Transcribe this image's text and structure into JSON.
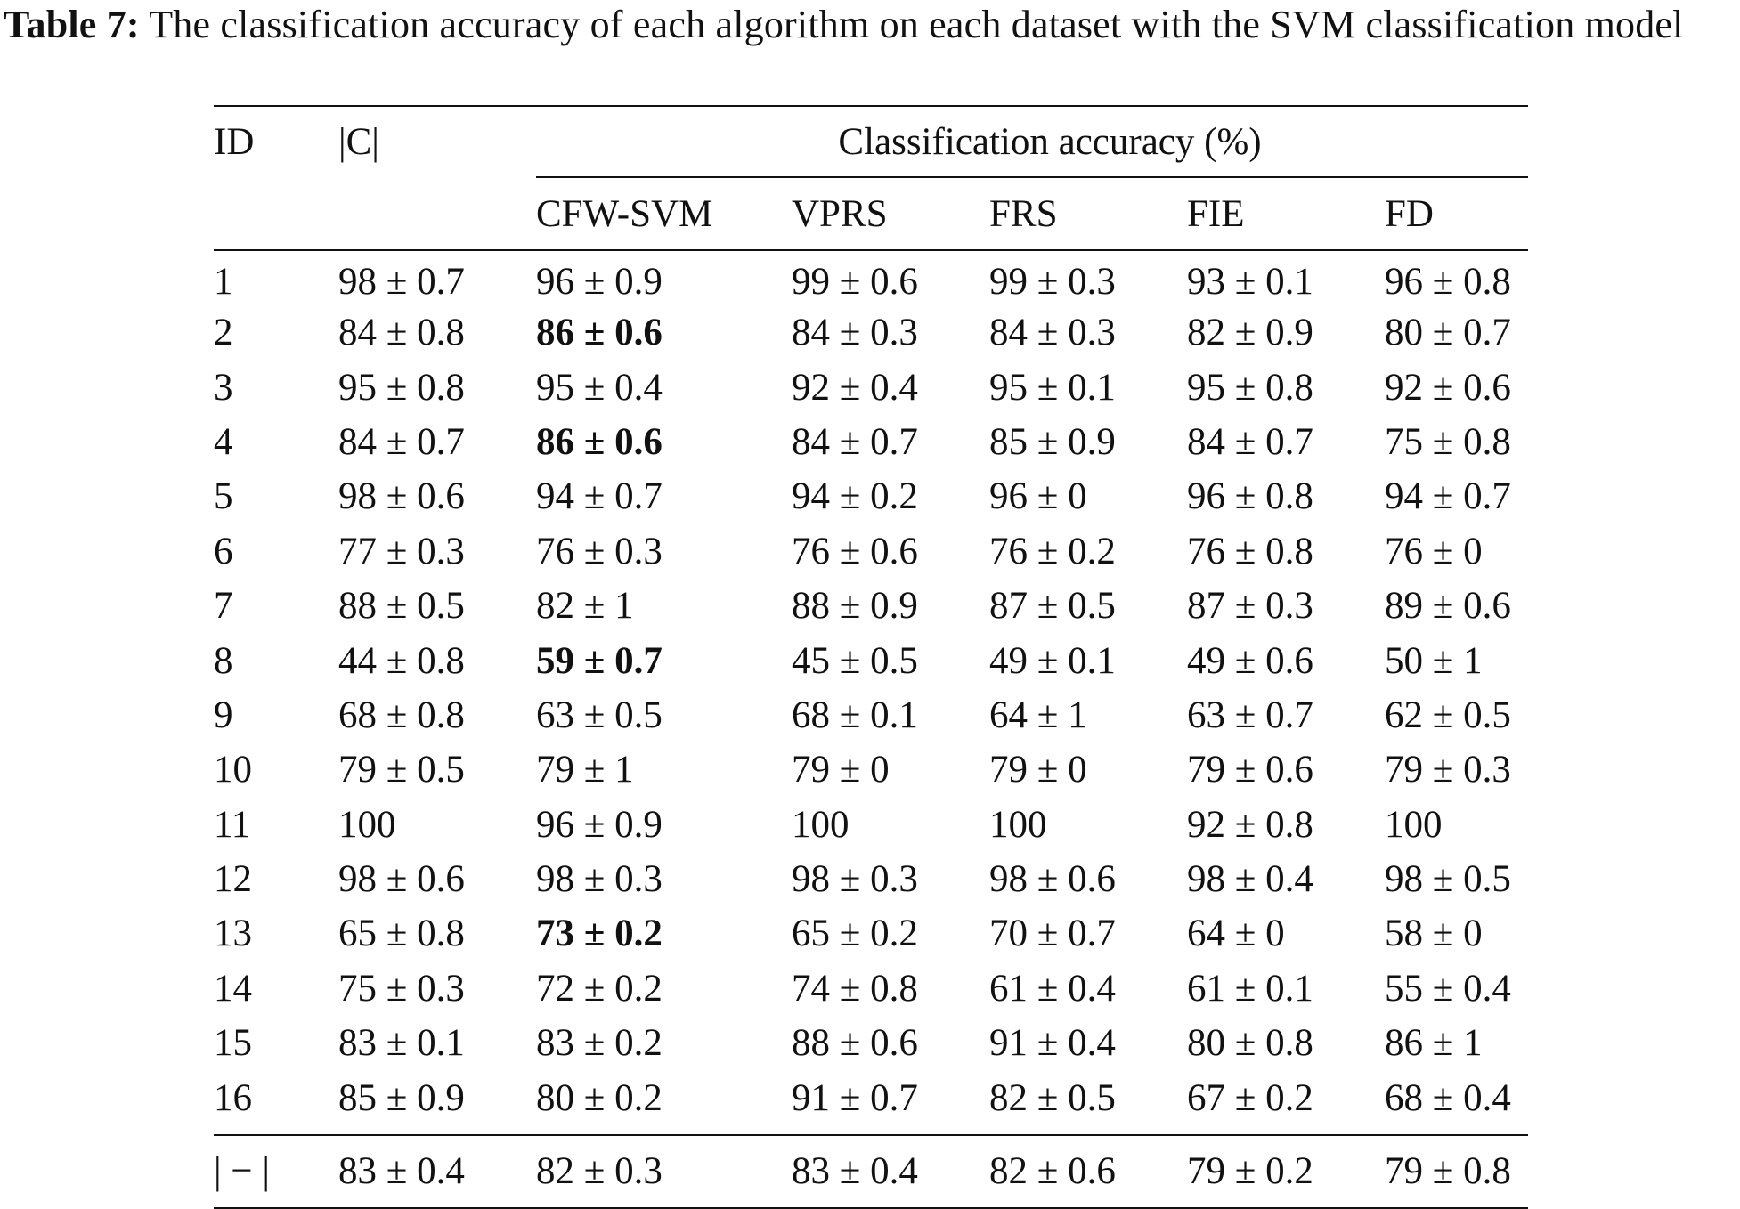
{
  "caption": {
    "label": "Table 7:",
    "text": " The classification accuracy of each algorithm on each dataset with the SVM classification model"
  },
  "table": {
    "header": {
      "id": "ID",
      "c": "|C|",
      "group": "Classification accuracy (%)",
      "methods": [
        "CFW-SVM",
        "VPRS",
        "FRS",
        "FIE",
        "FD"
      ]
    },
    "rows": [
      {
        "id": "1",
        "c": "98 ± 0.7",
        "cfw": "96 ± 0.9",
        "vprs": "99 ± 0.6",
        "frs": "99 ± 0.3",
        "fie": "93 ± 0.1",
        "fd": "96 ± 0.8"
      },
      {
        "id": "2",
        "c": "84 ± 0.8",
        "cfw": "86 ± 0.6",
        "vprs": "84 ± 0.3",
        "frs": "84 ± 0.3",
        "fie": "82 ± 0.9",
        "fd": "80 ± 0.7"
      },
      {
        "id": "3",
        "c": "95 ± 0.8",
        "cfw": "95 ± 0.4",
        "vprs": "92 ± 0.4",
        "frs": "95 ± 0.1",
        "fie": "95 ± 0.8",
        "fd": "92 ± 0.6"
      },
      {
        "id": "4",
        "c": "84 ± 0.7",
        "cfw": "86 ± 0.6",
        "vprs": "84 ± 0.7",
        "frs": "85 ± 0.9",
        "fie": "84 ± 0.7",
        "fd": "75 ± 0.8"
      },
      {
        "id": "5",
        "c": "98 ± 0.6",
        "cfw": "94 ± 0.7",
        "vprs": "94 ± 0.2",
        "frs": "96 ± 0",
        "fie": "96 ± 0.8",
        "fd": "94 ± 0.7"
      },
      {
        "id": "6",
        "c": "77 ± 0.3",
        "cfw": "76 ± 0.3",
        "vprs": "76 ± 0.6",
        "frs": "76 ± 0.2",
        "fie": "76 ± 0.8",
        "fd": "76 ± 0"
      },
      {
        "id": "7",
        "c": "88 ± 0.5",
        "cfw": "82 ± 1",
        "vprs": "88 ± 0.9",
        "frs": "87 ± 0.5",
        "fie": "87 ± 0.3",
        "fd": "89 ± 0.6"
      },
      {
        "id": "8",
        "c": "44 ± 0.8",
        "cfw": "59 ± 0.7",
        "vprs": "45 ± 0.5",
        "frs": "49 ± 0.1",
        "fie": "49 ± 0.6",
        "fd": "50 ± 1"
      },
      {
        "id": "9",
        "c": "68 ± 0.8",
        "cfw": "63 ± 0.5",
        "vprs": "68 ± 0.1",
        "frs": "64 ± 1",
        "fie": "63 ± 0.7",
        "fd": "62 ± 0.5"
      },
      {
        "id": "10",
        "c": "79 ± 0.5",
        "cfw": "79 ± 1",
        "vprs": "79 ± 0",
        "frs": "79 ± 0",
        "fie": "79 ± 0.6",
        "fd": "79 ± 0.3"
      },
      {
        "id": "11",
        "c": "100",
        "cfw": "96 ± 0.9",
        "vprs": "100",
        "frs": "100",
        "fie": "92 ± 0.8",
        "fd": "100"
      },
      {
        "id": "12",
        "c": "98 ± 0.6",
        "cfw": "98 ± 0.3",
        "vprs": "98 ± 0.3",
        "frs": "98 ± 0.6",
        "fie": "98 ± 0.4",
        "fd": "98 ± 0.5"
      },
      {
        "id": "13",
        "c": "65 ± 0.8",
        "cfw": "73 ± 0.2",
        "vprs": "65 ± 0.2",
        "frs": "70 ± 0.7",
        "fie": "64 ± 0",
        "fd": "58 ± 0"
      },
      {
        "id": "14",
        "c": "75 ± 0.3",
        "cfw": "72 ± 0.2",
        "vprs": "74 ± 0.8",
        "frs": "61 ± 0.4",
        "fie": "61 ± 0.1",
        "fd": "55 ± 0.4"
      },
      {
        "id": "15",
        "c": "83 ± 0.1",
        "cfw": "83 ± 0.2",
        "vprs": "88 ± 0.6",
        "frs": "91 ± 0.4",
        "fie": "80 ± 0.8",
        "fd": "86 ± 1"
      },
      {
        "id": "16",
        "c": "85 ± 0.9",
        "cfw": "80 ± 0.2",
        "vprs": "91 ± 0.7",
        "frs": "82 ± 0.5",
        "fie": "67 ± 0.2",
        "fd": "68 ± 0.4"
      }
    ],
    "bold_cells": [
      {
        "row": 1,
        "col": "cfw"
      },
      {
        "row": 3,
        "col": "cfw"
      },
      {
        "row": 7,
        "col": "cfw"
      },
      {
        "row": 12,
        "col": "cfw"
      }
    ],
    "summary": {
      "id": "| − |",
      "c": "83 ± 0.4",
      "cfw": "82 ± 0.3",
      "vprs": "83 ± 0.4",
      "frs": "82 ± 0.6",
      "fie": "79 ± 0.2",
      "fd": "79 ± 0.8"
    }
  }
}
